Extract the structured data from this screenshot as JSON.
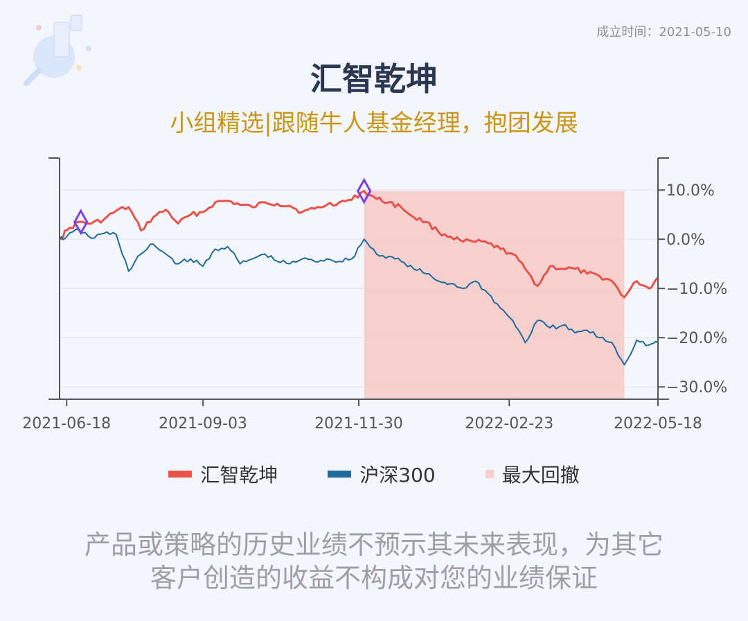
{
  "header": {
    "established_label": "成立时间：2021-05-10",
    "title": "汇智乾坤",
    "subtitle": "小组精选|跟随牛人基金经理，抱团发展"
  },
  "legend": {
    "items": [
      {
        "label": "汇智乾坤",
        "color": "#e8524a",
        "style": "line"
      },
      {
        "label": "沪深300",
        "color": "#1f6a9a",
        "style": "line"
      },
      {
        "label": "最大回撤",
        "color": "#f8d0cf",
        "style": "square"
      }
    ]
  },
  "disclaimer": {
    "line1": "产品或策略的历史业绩不预示其未来表现，为其它",
    "line2": "客户创造的收益不构成对您的业绩保证"
  },
  "colors": {
    "fund": "#e8524a",
    "index": "#1f6a9a",
    "drawdown": "#f4c9c6",
    "marker": "#7b3fe4",
    "title": "#2b3650",
    "subtitle": "#c9961a"
  },
  "decoration": {
    "icon": "magnifier-illustration-icon"
  },
  "chart_data": {
    "type": "line",
    "x_type": "date",
    "xlim": [
      "2021-06-14",
      "2022-05-18"
    ],
    "ylim": [
      -0.325,
      0.165
    ],
    "yticks": [
      0.1,
      0.0,
      -0.1,
      -0.2,
      -0.3
    ],
    "ytick_labels": [
      "10.0%",
      "0.0%",
      "−10.0%",
      "−20.0%",
      "−30.0%"
    ],
    "xticks": [
      "2021-06-18",
      "2021-09-03",
      "2021-11-30",
      "2022-02-23",
      "2022-05-18"
    ],
    "grid": "horizontal",
    "legend_position": "bottom",
    "series": [
      {
        "name": "汇智乾坤",
        "color": "#e8524a",
        "x": [
          "2021-06-14",
          "2021-06-18",
          "2021-06-25",
          "2021-07-02",
          "2021-07-09",
          "2021-07-16",
          "2021-07-23",
          "2021-07-30",
          "2021-08-06",
          "2021-08-13",
          "2021-08-20",
          "2021-08-27",
          "2021-09-03",
          "2021-09-10",
          "2021-09-17",
          "2021-09-24",
          "2021-10-01",
          "2021-10-08",
          "2021-10-15",
          "2021-10-22",
          "2021-10-29",
          "2021-11-05",
          "2021-11-12",
          "2021-11-19",
          "2021-11-26",
          "2021-12-03",
          "2021-12-10",
          "2021-12-17",
          "2021-12-24",
          "2021-12-31",
          "2022-01-07",
          "2022-01-14",
          "2022-01-21",
          "2022-01-28",
          "2022-02-04",
          "2022-02-11",
          "2022-02-18",
          "2022-02-25",
          "2022-03-04",
          "2022-03-11",
          "2022-03-18",
          "2022-03-25",
          "2022-04-01",
          "2022-04-08",
          "2022-04-15",
          "2022-04-22",
          "2022-04-29",
          "2022-05-06",
          "2022-05-13",
          "2022-05-18"
        ],
        "values": [
          0.0,
          0.018,
          0.035,
          0.032,
          0.04,
          0.058,
          0.065,
          0.018,
          0.045,
          0.06,
          0.032,
          0.05,
          0.055,
          0.075,
          0.078,
          0.07,
          0.065,
          0.075,
          0.072,
          0.068,
          0.055,
          0.062,
          0.07,
          0.075,
          0.08,
          0.098,
          0.082,
          0.075,
          0.065,
          0.045,
          0.035,
          0.015,
          0.005,
          -0.005,
          -0.005,
          -0.008,
          -0.02,
          -0.03,
          -0.06,
          -0.095,
          -0.055,
          -0.06,
          -0.06,
          -0.07,
          -0.075,
          -0.085,
          -0.118,
          -0.085,
          -0.1,
          -0.078
        ]
      },
      {
        "name": "沪深300",
        "color": "#1f6a9a",
        "x": [
          "2021-06-14",
          "2021-06-18",
          "2021-06-25",
          "2021-07-02",
          "2021-07-09",
          "2021-07-16",
          "2021-07-23",
          "2021-07-30",
          "2021-08-06",
          "2021-08-13",
          "2021-08-20",
          "2021-08-27",
          "2021-09-03",
          "2021-09-10",
          "2021-09-17",
          "2021-09-24",
          "2021-10-01",
          "2021-10-08",
          "2021-10-15",
          "2021-10-22",
          "2021-10-29",
          "2021-11-05",
          "2021-11-12",
          "2021-11-19",
          "2021-11-26",
          "2021-12-03",
          "2021-12-10",
          "2021-12-17",
          "2021-12-24",
          "2021-12-31",
          "2022-01-07",
          "2022-01-14",
          "2022-01-21",
          "2022-01-28",
          "2022-02-04",
          "2022-02-11",
          "2022-02-18",
          "2022-02-25",
          "2022-03-04",
          "2022-03-11",
          "2022-03-18",
          "2022-03-25",
          "2022-04-01",
          "2022-04-08",
          "2022-04-15",
          "2022-04-22",
          "2022-04-29",
          "2022-05-06",
          "2022-05-13",
          "2022-05-18"
        ],
        "values": [
          0.0,
          0.005,
          0.02,
          0.002,
          0.012,
          0.01,
          -0.065,
          -0.03,
          -0.01,
          -0.03,
          -0.05,
          -0.04,
          -0.055,
          -0.02,
          -0.015,
          -0.05,
          -0.04,
          -0.03,
          -0.045,
          -0.05,
          -0.04,
          -0.045,
          -0.04,
          -0.045,
          -0.04,
          0.0,
          -0.03,
          -0.035,
          -0.045,
          -0.06,
          -0.07,
          -0.085,
          -0.09,
          -0.1,
          -0.085,
          -0.11,
          -0.14,
          -0.165,
          -0.21,
          -0.165,
          -0.18,
          -0.175,
          -0.19,
          -0.185,
          -0.2,
          -0.21,
          -0.255,
          -0.205,
          -0.215,
          -0.21
        ]
      }
    ],
    "drawdown": {
      "start": "2021-12-03",
      "end": "2022-04-29",
      "peak_value": 0.098
    },
    "markers": [
      {
        "x": "2021-06-26",
        "y": 0.035
      },
      {
        "x": "2021-12-03",
        "y": 0.098
      }
    ]
  }
}
